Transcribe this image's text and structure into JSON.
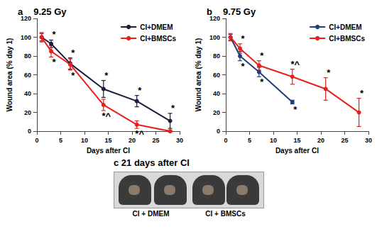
{
  "chart_data": [
    {
      "type": "line",
      "panel": "a",
      "title": "9.25 Gy",
      "x_label": "Days after CI",
      "y_label": "Wound area (% day 1)",
      "xlim": [
        0,
        30
      ],
      "xticks": [
        0,
        5,
        10,
        15,
        20,
        25,
        30
      ],
      "ylim": [
        0,
        120
      ],
      "yticks": [
        0,
        20,
        40,
        60,
        80,
        100,
        120
      ],
      "grid": false,
      "legend": "upper right",
      "marker": "circle",
      "series": [
        {
          "name": "CI+DMEM",
          "color": "#1c1c3c",
          "x": [
            1,
            3,
            7,
            14,
            21,
            28
          ],
          "values": [
            100,
            93,
            72,
            45,
            32,
            11
          ],
          "errors": [
            4,
            4,
            6,
            9,
            6,
            8
          ],
          "annotations": [
            null,
            "*",
            "*",
            "*",
            "*",
            "*"
          ]
        },
        {
          "name": "CI+BMSCs",
          "color": "#e8201c",
          "x": [
            1,
            3,
            7,
            14,
            21,
            28
          ],
          "values": [
            100,
            85,
            71,
            28,
            7,
            0
          ],
          "errors": [
            5,
            6,
            6,
            6,
            4,
            1
          ],
          "annotations": [
            null,
            "*",
            "*",
            "*^",
            "*^",
            null
          ]
        }
      ]
    },
    {
      "type": "line",
      "panel": "b",
      "title": "9.75 Gy",
      "x_label": "Days after CI",
      "y_label": "Wound area (% day 1)",
      "xlim": [
        0,
        30
      ],
      "xticks": [
        0,
        5,
        10,
        15,
        20,
        25,
        30
      ],
      "ylim": [
        0,
        120
      ],
      "yticks": [
        0,
        20,
        40,
        60,
        80,
        100,
        120
      ],
      "grid": false,
      "legend": "upper right",
      "marker": "circle",
      "series": [
        {
          "name": "CI+DMEM",
          "color": "#1f3f7a",
          "x": [
            1,
            3,
            7,
            14
          ],
          "values": [
            100,
            80,
            63,
            31
          ],
          "errors": [
            3,
            5,
            5,
            2
          ],
          "annotations": [
            null,
            "*",
            "*",
            "*"
          ]
        },
        {
          "name": "CI+BMSCs",
          "color": "#e8201c",
          "x": [
            1,
            3,
            7,
            14,
            21,
            28
          ],
          "values": [
            100,
            88,
            70,
            58,
            45,
            20
          ],
          "errors": [
            4,
            5,
            5,
            8,
            12,
            15
          ],
          "annotations": [
            null,
            "*",
            "*",
            "*^",
            "*",
            "*"
          ]
        }
      ]
    }
  ],
  "photo_panel": {
    "panel": "c",
    "title": "21 days after CI",
    "captions": [
      "CI + DMEM",
      "CI + BMSCs"
    ]
  }
}
